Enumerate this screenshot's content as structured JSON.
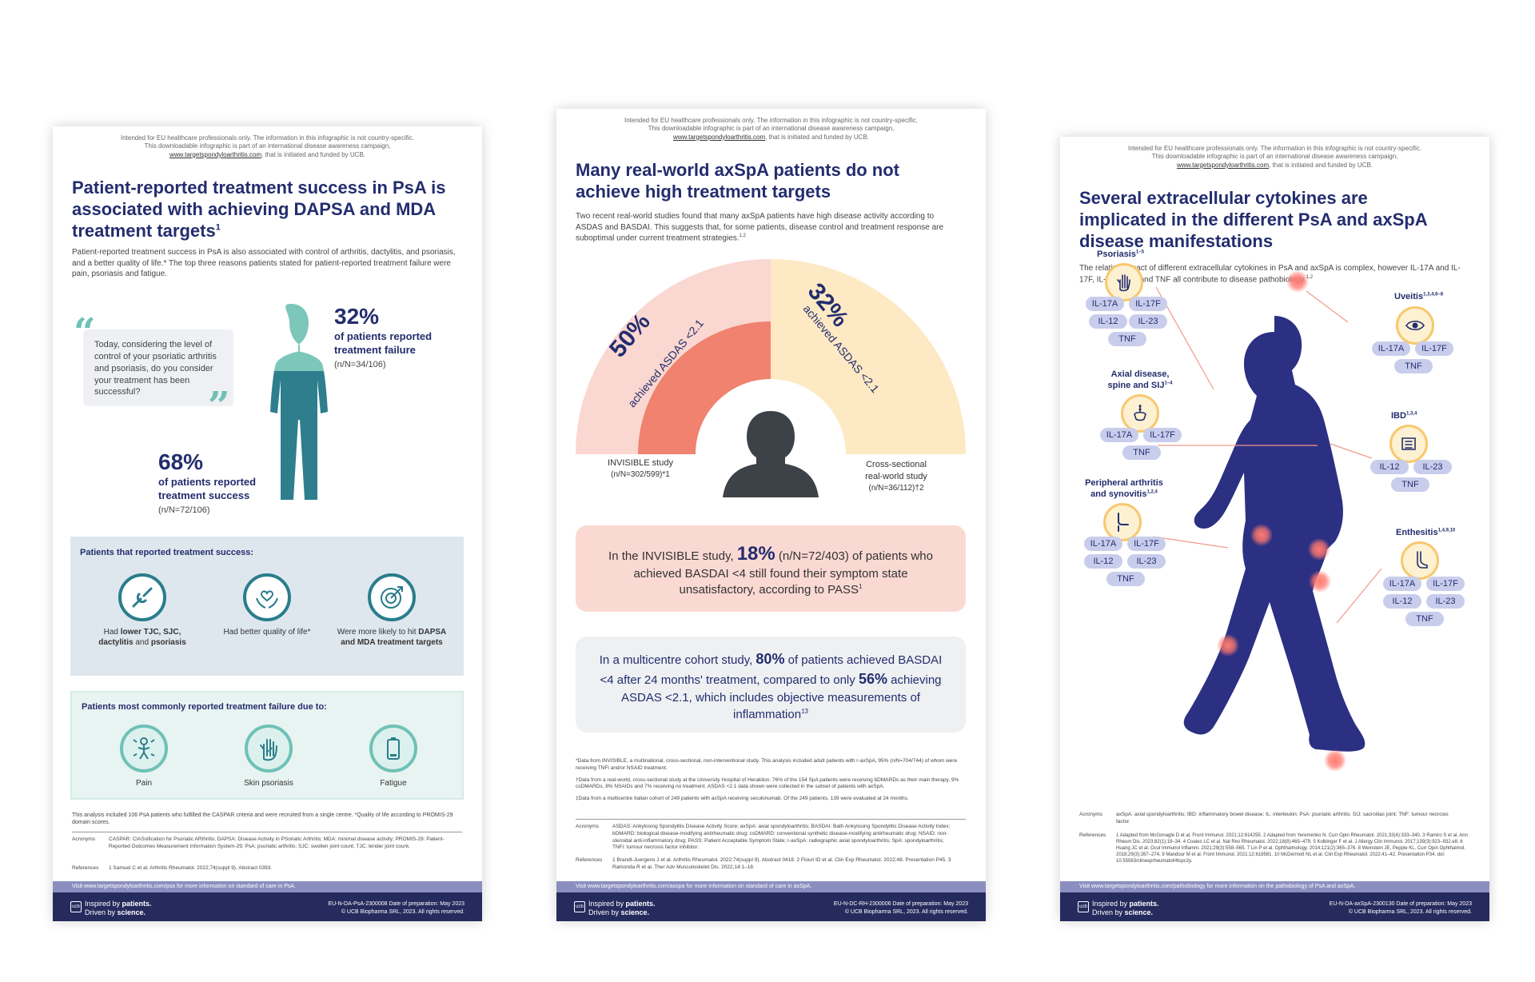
{
  "disclaimer": {
    "line1": "Intended for EU healthcare professionals only. The information in this infographic is not country-specific.",
    "line2": "This downloadable infographic is part of an international disease awareness campaign,",
    "link": "www.targetspondyloarthritis.com",
    "line3": ", that is initiated and funded by UCB."
  },
  "footer": {
    "brand1": "Inspired by ",
    "brand1b": "patients.",
    "brand2": "Driven by ",
    "brand2b": "science.",
    "copyright": "© UCB Biopharma SRL, 2023. All rights reserved.",
    "acronyms_label": "Acronyms",
    "references_label": "References"
  },
  "panel1": {
    "title": "Patient-reported treatment success in PsA is associated with achieving DAPSA and MDA treatment targets",
    "title_sup": "1",
    "intro": "Patient-reported treatment success in PsA is also associated with control of arthritis, dactylitis, and psoriasis, and a better quality of life.* The top three reasons patients stated for patient-reported treatment failure were pain, psoriasis and fatigue.",
    "quote": "Today, considering the level of control of your psoriatic arthritis and psoriasis, do you consider your treatment has been successful?",
    "stat1_pct": "32%",
    "stat1_l1": "of patients reported",
    "stat1_l2": "treatment failure",
    "stat1_n": "(n/N=34/106)",
    "stat2_pct": "68%",
    "stat2_l1": "of patients reported",
    "stat2_l2": "treatment success",
    "stat2_n": "(n/N=72/106)",
    "success_title": "Patients that reported treatment success:",
    "success_items": [
      {
        "pre": "Had ",
        "bold": "lower TJC, SJC, dactylitis",
        "post": " and ",
        "bold2": "psoriasis",
        "icon": "joint-icon"
      },
      {
        "pre": "Had better quality of life*",
        "bold": "",
        "post": "",
        "bold2": "",
        "icon": "hands-heart-icon"
      },
      {
        "pre": "Were more likely to hit ",
        "bold": "DAPSA and MDA treatment targets",
        "post": "",
        "bold2": "",
        "icon": "target-icon"
      }
    ],
    "failure_title": "Patients most commonly reported treatment failure due to:",
    "failure_items": [
      {
        "label": "Pain",
        "icon": "pain-icon"
      },
      {
        "label": "Skin psoriasis",
        "icon": "hand-psoriasis-icon"
      },
      {
        "label": "Fatigue",
        "icon": "battery-icon"
      }
    ],
    "note": "This analysis included 106 PsA patients who fulfilled the CASPAR criteria and were recruited from a single centre. *Quality of life according to PROMIS-29 domain scores.",
    "acronyms": "CASPAR: ClASsification for Psoriatic ARthritis; DAPSA: Disease Activity in PSoriatic Arthritis; MDA: minimal disease activity; PROMIS-29: Patient-Reported Outcomes Measurement Information System-29; PsA: psoriatic arthritis; SJC: swollen joint count; TJC: tender joint count.",
    "references": "1 Samuel C et al. Arthritis Rheumatol. 2022;74(suppl 9). Abstract 0393.",
    "footer_link": "Visit www.targetspondyloarthritis.com/psa for more information on standard of care in PsA.",
    "code": "EU-N-DA-PsA-2300008 Date of preparation: May 2023"
  },
  "panel2": {
    "title": "Many real-world axSpA patients do not achieve high treatment targets",
    "intro": "Two recent real-world studies found that many axSpA patients have high disease activity according to ASDAS and BASDAI. This suggests that, for some patients, disease control and treatment response are suboptimal under current treatment strategies.",
    "intro_sup": "1,2",
    "left_pct": "50%",
    "left_text": "achieved ASDAS <2.1",
    "left_study": "INVISIBLE study",
    "left_n": "(n/N=302/599)*1",
    "right_pct": "32%",
    "right_text": "achieved ASDAS <2.1",
    "right_study1": "Cross-sectional",
    "right_study2": "real-world study",
    "right_n": "(n/N=36/112)†2",
    "box1_pre": "In the INVISIBLE study, ",
    "box1_pct": "18%",
    "box1_post": " (n/N=72/403) of patients who achieved BASDAI <4 still found their symptom state unsatisfactory, according to PASS",
    "box1_sup": "1",
    "box2_pre": "In a multicentre cohort study, ",
    "box2_pct1": "80%",
    "box2_mid": " of patients achieved BASDAI <4 after 24 months' treatment, compared to only ",
    "box2_pct2": "56%",
    "box2_post": " achieving ASDAS <2.1, which includes objective measurements of inflammation",
    "box2_sup": "‡3",
    "notes": [
      "*Data from INVISIBLE, a multinational, cross-sectional, non-interventional study. This analysis included adult patients with r-axSpA, 95% (n/N=704/744) of whom were receiving TNFi and/or NSAID treatment.",
      "†Data from a real-world, cross-sectional study at the University Hospital of Heraklion. 76% of the 154 SpA patients were receiving bDMARDs as their main therapy, 9% csDMARDs, 8% NSAIDs and 7% receiving no treatment. ASDAS <2.1 data shown were collected in the subset of patients with axSpA.",
      "‡Data from a multicentre Italian cohort of 249 patients with axSpA receiving secukinumab. Of the 249 patients, 139 were evaluated at 24 months."
    ],
    "acronyms": "ASDAS: Ankylosing Spondylitis Disease Activity Score; axSpA: axial spondyloarthritis; BASDAI: Bath Ankylosing Spondylitis Disease Activity Index; bDMARD: biological disease-modifying antirheumatic drug; csDMARD: conventional synthetic disease-modifying antirheumatic drug; NSAID: non-steroidal anti-inflammatory drug; PASS: Patient Acceptable Symptom State; r-axSpA: radiographic axial spondyloarthritis; SpA: spondyloarthritis; TNFi: tumour necrosis factor inhibitor.",
    "references": "1 Brandt-Juergens J et al. Arthritis Rheumatol. 2022;74(suppl 9). Abstract 0418. 2 Flouri ID et al. Clin Exp Rheumatol. 2022;48. Presentation P45. 3 Ramonda R et al. Ther Adv Musculoskelet Dis. 2022;14:1–18.",
    "footer_link": "Visit www.targetspondyloarthritis.com/axspa for more information on standard of care in axSpA.",
    "code": "EU-N-DC-RH-2300006 Date of preparation: May 2023",
    "colors": {
      "left_outer": "#fad7d0",
      "left_inner": "#f0826f",
      "right_outer": "#fde9c4",
      "right_inner": "#fdd069"
    }
  },
  "panel3": {
    "title": "Several extracellular cytokines are implicated in the different PsA and axSpA disease manifestations",
    "intro": "The relative impact of different extracellular cytokines in PsA and axSpA is complex, however IL-17A and IL-17F, IL-12, IL-23 and TNF all contribute to disease pathobiology.",
    "intro_sup": "1,2",
    "psoriasis": {
      "label": "Psoriasis",
      "sup": "1–5",
      "pills": [
        "IL-17A",
        "IL-17F",
        "IL-12",
        "IL-23",
        "TNF"
      ]
    },
    "uveitis": {
      "label": "Uveitis",
      "sup": "1,3,4,6–8",
      "pills": [
        "IL-17A",
        "IL-17F",
        "TNF"
      ]
    },
    "axial": {
      "label1": "Axial disease,",
      "label2": "spine and SIJ",
      "sup": "1–4",
      "pills": [
        "IL-17A",
        "IL-17F",
        "TNF"
      ]
    },
    "ibd": {
      "label": "IBD",
      "sup": "1,3,4",
      "pills": [
        "IL-12",
        "IL-23",
        "TNF"
      ]
    },
    "peripheral": {
      "label1": "Peripheral arthritis",
      "label2": "and synovitis",
      "sup": "1,2,4",
      "pills": [
        "IL-17A",
        "IL-17F",
        "IL-12",
        "IL-23",
        "TNF"
      ]
    },
    "enthesitis": {
      "label": "Enthesitis",
      "sup": "1,4,9,10",
      "pills": [
        "IL-17A",
        "IL-17F",
        "IL-12",
        "IL-23",
        "TNF"
      ]
    },
    "acronyms": "axSpA: axial spondyloarthritis; IBD: inflammatory bowel disease; IL: interleukin; PsA: psoriatic arthritis; SIJ: sacroiliac joint; TNF: tumour necrosis factor.",
    "references": "1 Adapted from McGonagle D et al. Front Immunol. 2021;12:614255. 2 Adapted from Yeremenko N. Curr Opin Rheumatol. 2021;33(4):333–340. 3 Ramiro S et al. Ann Rheum Dis. 2023;82(1):19–34. 4 Coates LC et al. Nat Rev Rheumatol. 2022;18(8):465–479. 5 Kolbinger F et al. J Allergy Clin Immunol. 2017;139(3):923–932.e8. 6 Huang JC et al. Ocul Immunol Inflamm. 2021;29(3):558–565. 7 Lin P et al. Ophthalmology. 2014;121(2):365–376. 8 Weinstein JE, Pepple KL. Curr Opin Ophthalmol. 2018;29(3):267–274. 9 Mandour M et al. Front Immunol. 2021;12:618581. 10 McDermott NL et al. Clin Exp Rheumatol. 2022:41–42. Presentation P34. doi: 10.55563/clinexprheumatol/4lspc2y.",
    "footer_link": "Visit www.targetspondyloarthritis.com/pathobiology for more information on the pathobiology of PsA and axSpA.",
    "code": "EU-N-DA-axSpA-2300130 Date of preparation: May 2023"
  }
}
